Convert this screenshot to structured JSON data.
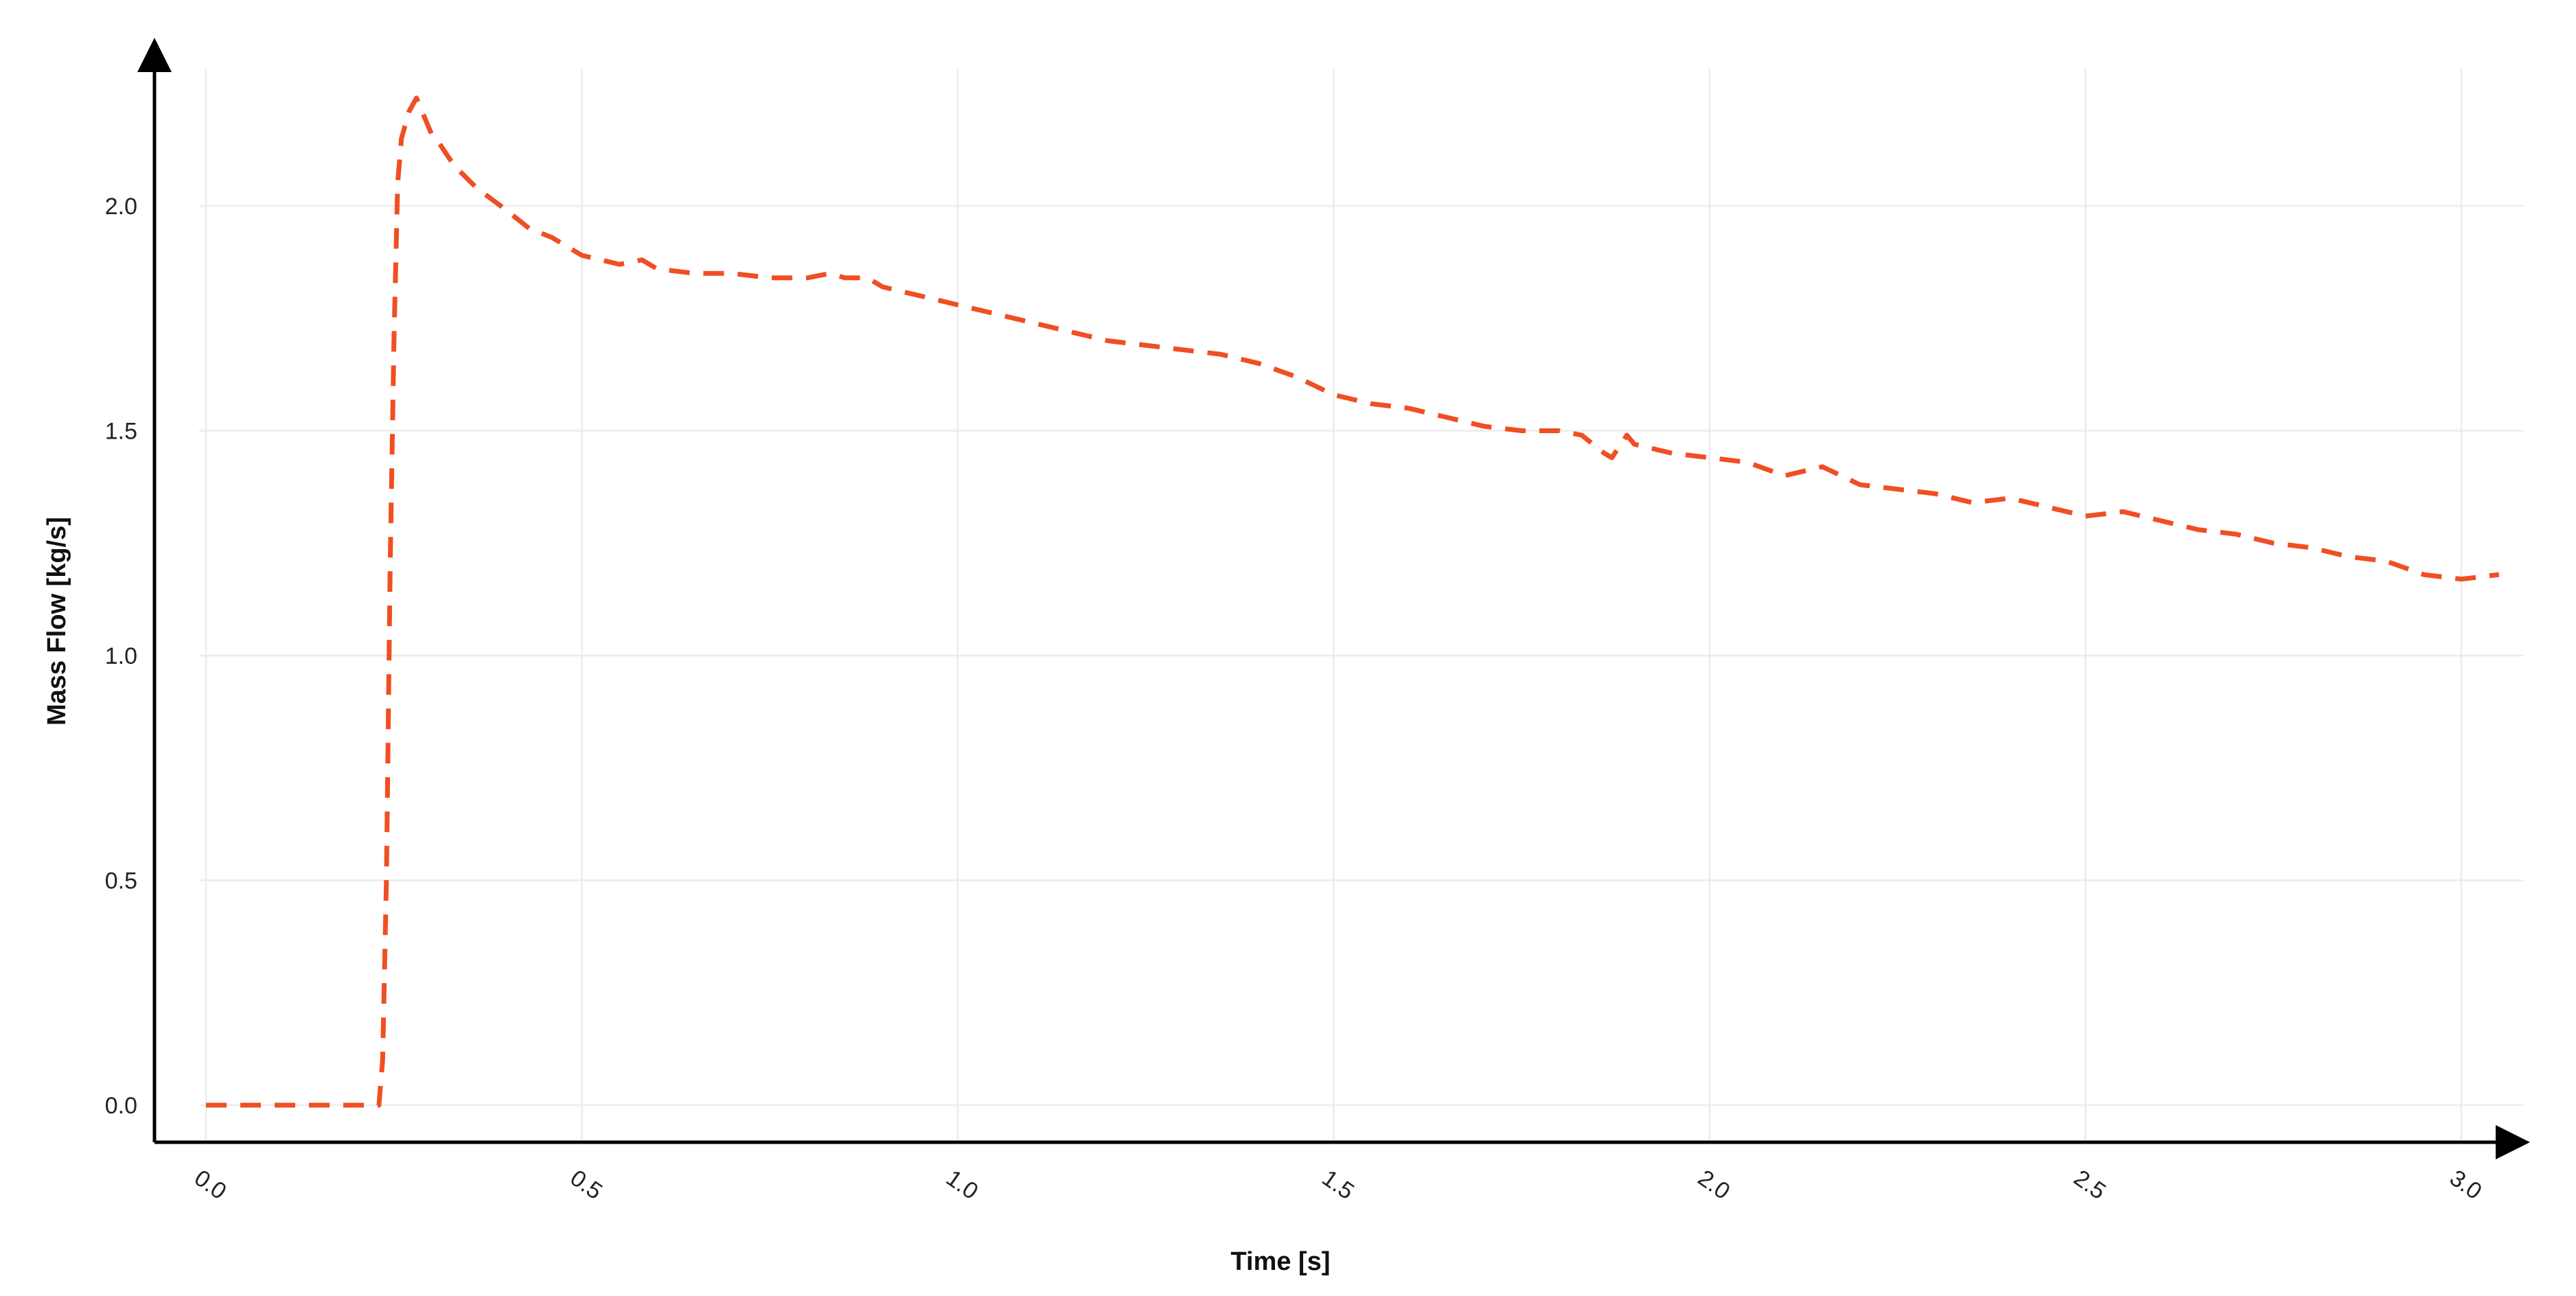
{
  "chart_data": {
    "type": "line",
    "title": "",
    "xlabel": "Time [s]",
    "ylabel": "Mass Flow [kg/s]",
    "xlim": [
      -0.08,
      3.1
    ],
    "ylim": [
      -0.09,
      2.3
    ],
    "grid": true,
    "legend": "none",
    "x_ticks": [
      0.0,
      0.5,
      1.0,
      1.5,
      2.0,
      2.5,
      3.0
    ],
    "x_tick_labels": [
      "0.0",
      "0.5",
      "1.0",
      "1.5",
      "2.0",
      "2.5",
      "3.0"
    ],
    "y_ticks": [
      0.0,
      0.5,
      1.0,
      1.5,
      2.0
    ],
    "y_tick_labels": [
      "0.0",
      "0.5",
      "1.0",
      "1.5",
      "2.0"
    ],
    "series": [
      {
        "color": "#f04e23",
        "style": "dashed",
        "x": [
          0.0,
          0.05,
          0.1,
          0.15,
          0.2,
          0.23,
          0.235,
          0.24,
          0.245,
          0.25,
          0.255,
          0.26,
          0.27,
          0.28,
          0.29,
          0.3,
          0.31,
          0.33,
          0.36,
          0.4,
          0.43,
          0.46,
          0.5,
          0.55,
          0.58,
          0.6,
          0.65,
          0.7,
          0.75,
          0.8,
          0.83,
          0.85,
          0.88,
          0.9,
          0.95,
          1.0,
          1.05,
          1.1,
          1.15,
          1.2,
          1.25,
          1.3,
          1.35,
          1.4,
          1.45,
          1.5,
          1.55,
          1.6,
          1.65,
          1.7,
          1.75,
          1.8,
          1.83,
          1.86,
          1.87,
          1.89,
          1.9,
          1.95,
          2.0,
          2.05,
          2.1,
          2.15,
          2.2,
          2.25,
          2.3,
          2.35,
          2.4,
          2.45,
          2.5,
          2.55,
          2.6,
          2.65,
          2.7,
          2.75,
          2.8,
          2.85,
          2.9,
          2.95,
          3.0,
          3.05
        ],
        "y": [
          0.0,
          0.0,
          0.0,
          0.0,
          0.0,
          0.0,
          0.1,
          0.5,
          1.2,
          1.7,
          2.05,
          2.15,
          2.21,
          2.24,
          2.2,
          2.16,
          2.14,
          2.09,
          2.04,
          1.99,
          1.95,
          1.93,
          1.89,
          1.87,
          1.88,
          1.86,
          1.85,
          1.85,
          1.84,
          1.84,
          1.85,
          1.84,
          1.84,
          1.82,
          1.8,
          1.78,
          1.76,
          1.74,
          1.72,
          1.7,
          1.69,
          1.68,
          1.67,
          1.65,
          1.62,
          1.58,
          1.56,
          1.55,
          1.53,
          1.51,
          1.5,
          1.5,
          1.49,
          1.45,
          1.44,
          1.49,
          1.47,
          1.45,
          1.44,
          1.43,
          1.4,
          1.42,
          1.38,
          1.37,
          1.36,
          1.34,
          1.35,
          1.33,
          1.31,
          1.32,
          1.3,
          1.28,
          1.27,
          1.25,
          1.24,
          1.22,
          1.21,
          1.18,
          1.17,
          1.18
        ]
      }
    ]
  }
}
